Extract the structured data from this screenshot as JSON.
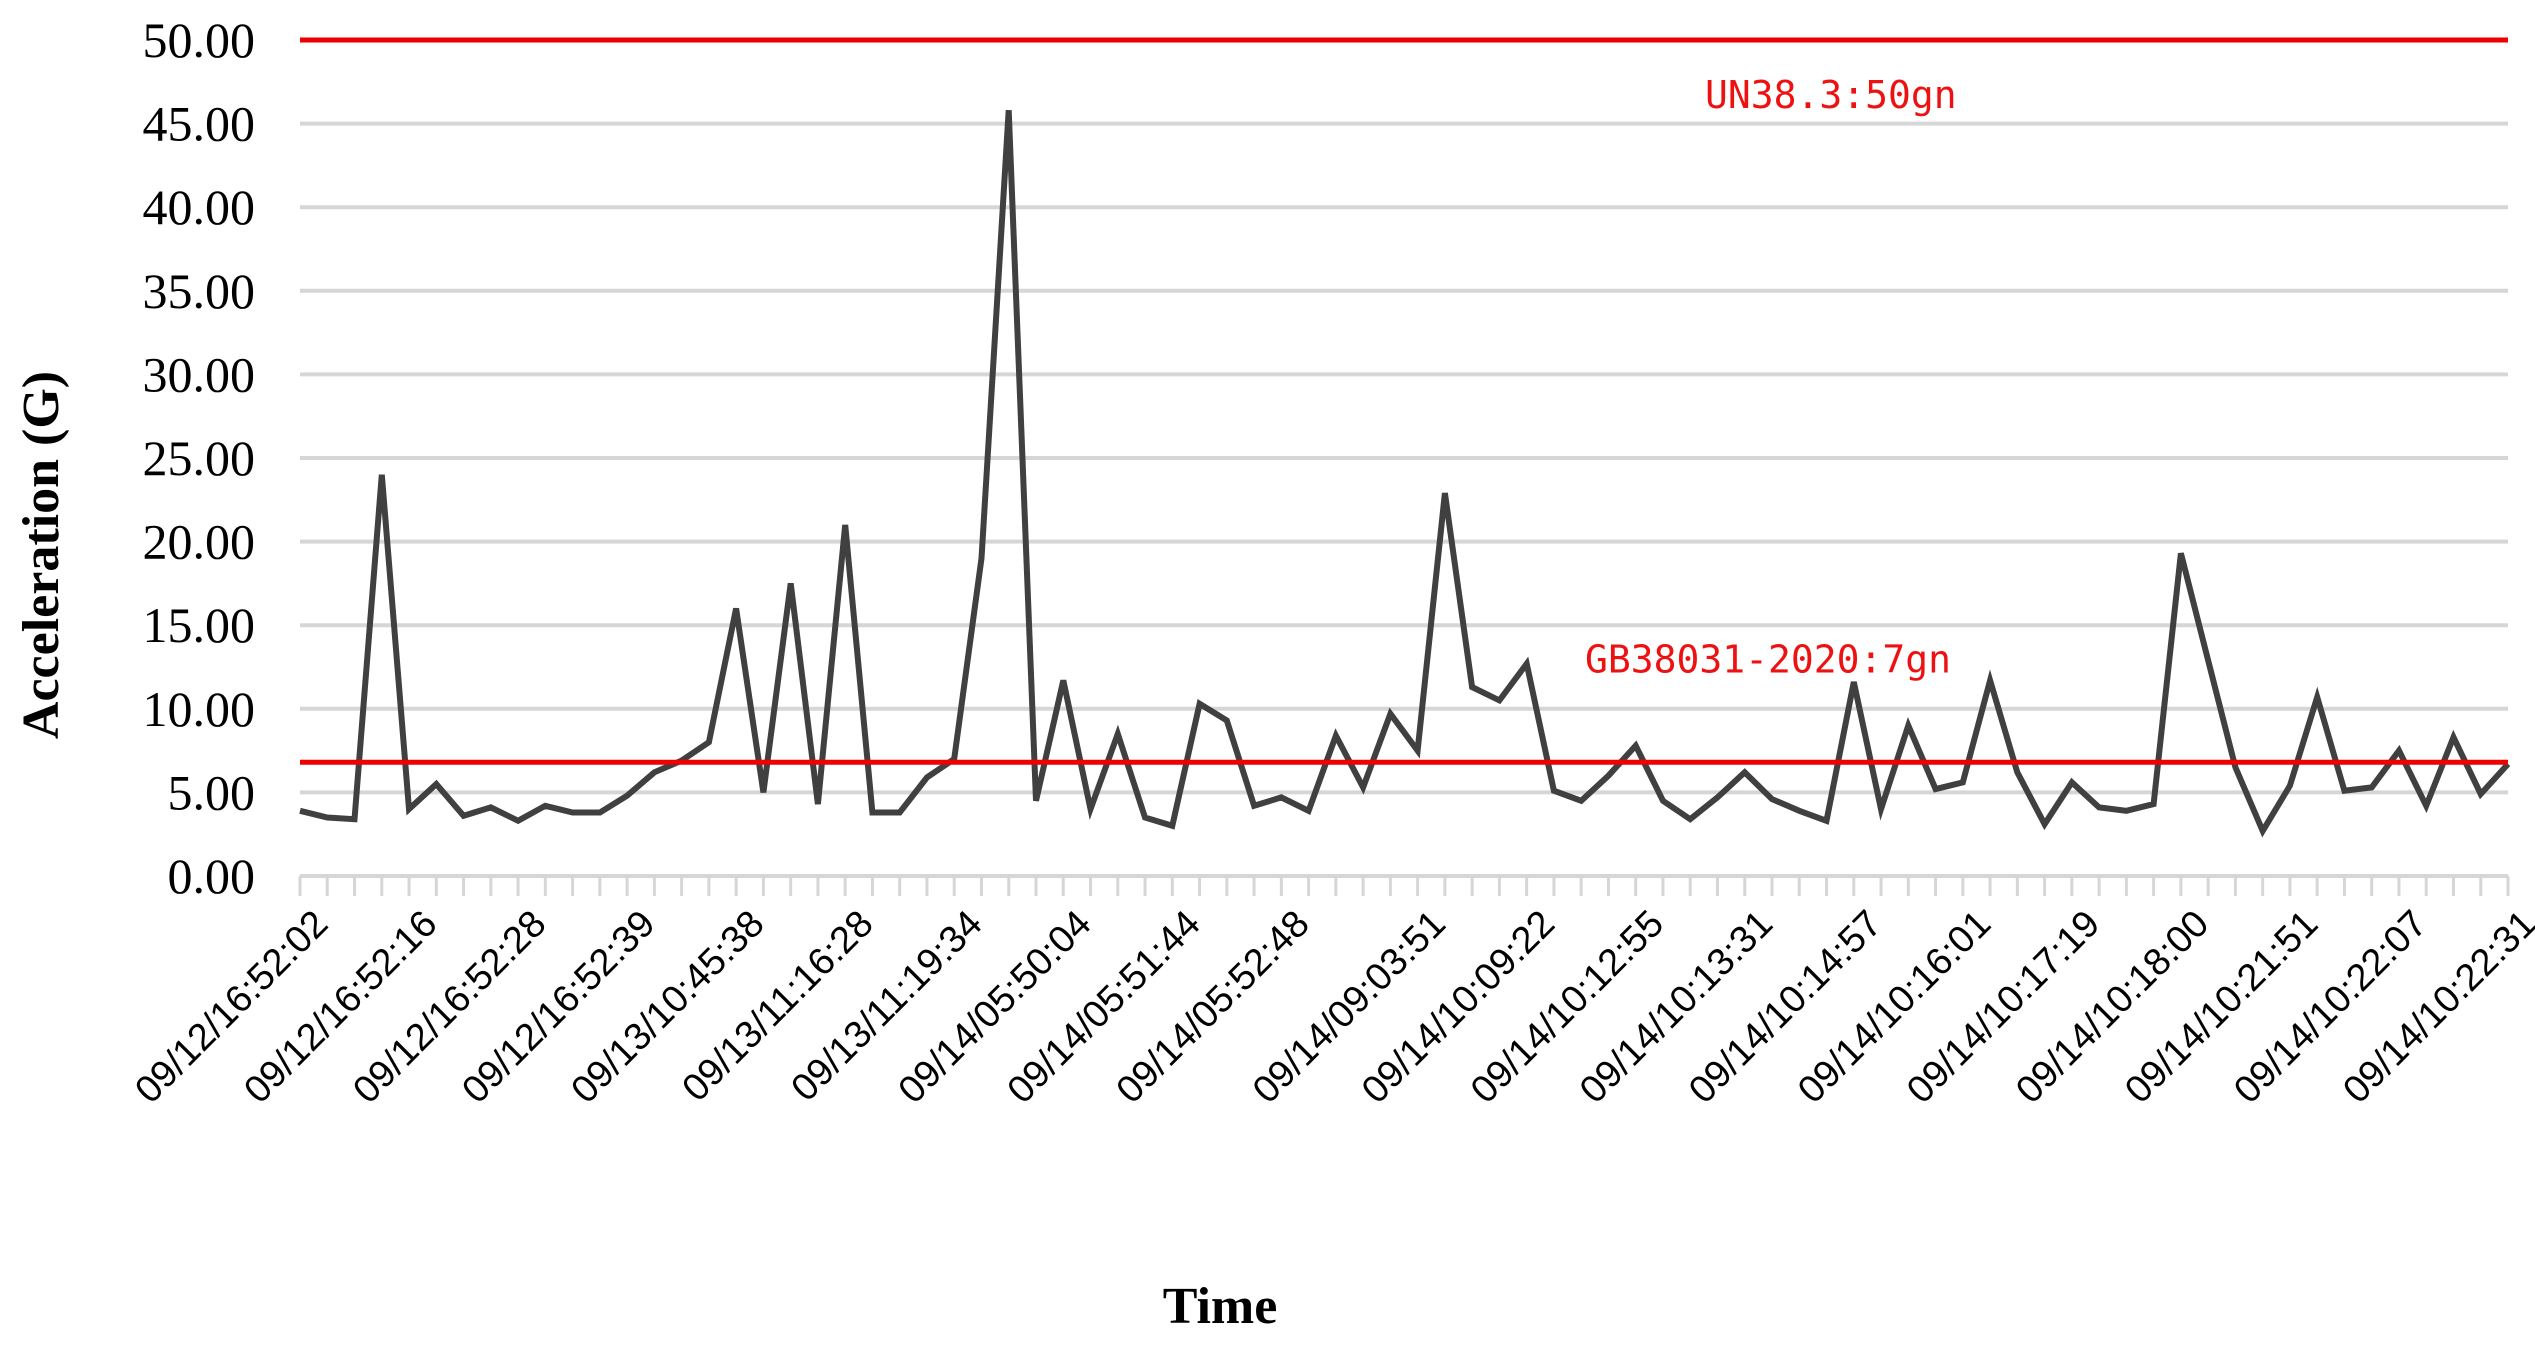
{
  "chart_data": {
    "type": "line",
    "title": "",
    "xlabel": "Time",
    "ylabel": "Acceleration (G)",
    "ylim": [
      0,
      50
    ],
    "yticks": [
      "0.00",
      "5.00",
      "10.00",
      "15.00",
      "20.00",
      "25.00",
      "30.00",
      "35.00",
      "40.00",
      "45.00",
      "50.00"
    ],
    "grid": true,
    "x_tick_labels": [
      "09/12/16:52:02",
      "09/12/16:52:16",
      "09/12/16:52:28",
      "09/12/16:52:39",
      "09/13/10:45:38",
      "09/13/11:16:28",
      "09/13/11:19:34",
      "09/14/05:50:04",
      "09/14/05:51:44",
      "09/14/05:52:48",
      "09/14/09:03:51",
      "09/14/10:09:22",
      "09/14/10:12:55",
      "09/14/10:13:31",
      "09/14/10:14:57",
      "09/14/10:16:01",
      "09/14/10:17:19",
      "09/14/10:18:00",
      "09/14/10:21:51",
      "09/14/10:22:07",
      "09/14/10:22:31"
    ],
    "series": [
      {
        "name": "",
        "color": "#404040",
        "values": [
          3.9,
          3.5,
          3.4,
          24.0,
          4.0,
          5.5,
          3.6,
          4.1,
          3.3,
          4.2,
          3.8,
          3.8,
          4.8,
          6.2,
          6.9,
          8.0,
          16.0,
          5.0,
          17.5,
          4.3,
          21.0,
          3.8,
          3.8,
          5.9,
          7.0,
          19.0,
          45.8,
          4.5,
          11.7,
          4.0,
          8.5,
          3.5,
          3.0,
          10.3,
          9.3,
          4.2,
          4.7,
          3.9,
          8.4,
          5.3,
          9.7,
          7.5,
          22.9,
          11.3,
          10.5,
          12.7,
          5.1,
          4.5,
          6.0,
          7.8,
          4.5,
          3.4,
          4.7,
          6.2,
          4.6,
          3.9,
          3.3,
          11.6,
          4.0,
          9.0,
          5.2,
          5.6,
          11.7,
          6.2,
          3.1,
          5.6,
          4.1,
          3.9,
          4.3,
          19.3,
          12.9,
          6.5,
          2.7,
          5.4,
          10.7,
          5.1,
          5.3,
          7.5,
          4.2,
          8.3,
          4.9,
          6.7
        ]
      }
    ],
    "reference_lines": [
      {
        "label": "UN38.3:50gn",
        "value": 50,
        "color": "#ee0000"
      },
      {
        "label": "GB38031-2020:7gn",
        "value": 6.8,
        "color": "#ee0000"
      }
    ]
  }
}
